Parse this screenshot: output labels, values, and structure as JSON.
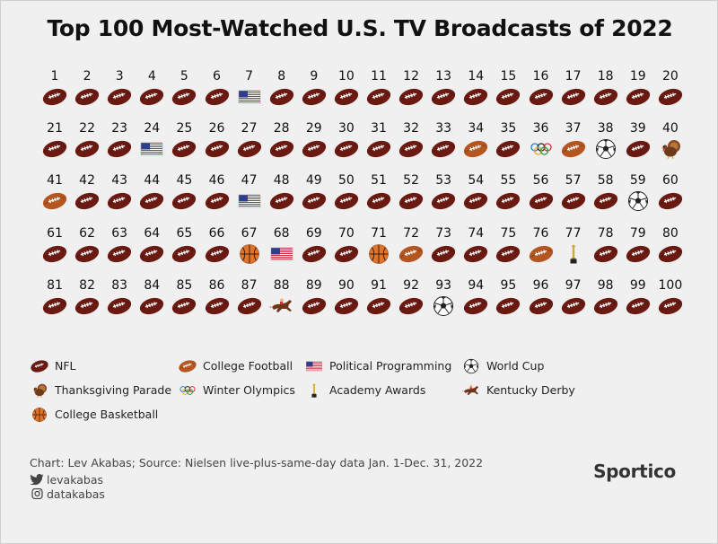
{
  "chart_data": {
    "type": "table",
    "title": "Top 100 Most-Watched U.S. TV Broadcasts of 2022",
    "categories": [
      {
        "key": "nfl",
        "label": "NFL",
        "icon": "nfl-football-icon"
      },
      {
        "key": "college_football",
        "label": "College Football",
        "icon": "college-football-icon"
      },
      {
        "key": "political",
        "label": "Political Programming",
        "icon": "us-flag-icon"
      },
      {
        "key": "world_cup",
        "label": "World Cup",
        "icon": "soccer-ball-icon"
      },
      {
        "key": "thanksgiving",
        "label": "Thanksgiving Parade",
        "icon": "turkey-icon"
      },
      {
        "key": "olympics",
        "label": "Winter Olympics",
        "icon": "olympic-rings-icon"
      },
      {
        "key": "oscars",
        "label": "Academy Awards",
        "icon": "oscar-statue-icon"
      },
      {
        "key": "derby",
        "label": "Kentucky Derby",
        "icon": "horse-racing-icon"
      },
      {
        "key": "college_basketball",
        "label": "College Basketball",
        "icon": "basketball-icon"
      }
    ],
    "ranks": [
      "1",
      "2",
      "3",
      "4",
      "5",
      "6",
      "7",
      "8",
      "9",
      "10",
      "11",
      "12",
      "13",
      "14",
      "15",
      "16",
      "17",
      "18",
      "19",
      "20",
      "21",
      "22",
      "23",
      "24",
      "25",
      "26",
      "27",
      "28",
      "29",
      "30",
      "31",
      "32",
      "33",
      "34",
      "35",
      "36",
      "37",
      "38",
      "39",
      "40",
      "41",
      "42",
      "43",
      "44",
      "45",
      "46",
      "47",
      "48",
      "49",
      "50",
      "51",
      "52",
      "53",
      "54",
      "55",
      "56",
      "57",
      "58",
      "59",
      "60",
      "61",
      "62",
      "63",
      "64",
      "65",
      "66",
      "67",
      "68",
      "69",
      "70",
      "71",
      "72",
      "73",
      "74",
      "75",
      "76",
      "77",
      "78",
      "79",
      "80",
      "81",
      "82",
      "83",
      "84",
      "85",
      "86",
      "87",
      "88",
      "89",
      "90",
      "91",
      "92",
      "93",
      "94",
      "95",
      "96",
      "97",
      "98",
      "99",
      "100"
    ],
    "broadcasts": [
      "nfl",
      "nfl",
      "nfl",
      "nfl",
      "nfl",
      "nfl",
      "political",
      "nfl",
      "nfl",
      "nfl",
      "nfl",
      "nfl",
      "nfl",
      "nfl",
      "nfl",
      "nfl",
      "nfl",
      "nfl",
      "nfl",
      "nfl",
      "nfl",
      "nfl",
      "nfl",
      "political",
      "nfl",
      "nfl",
      "nfl",
      "nfl",
      "nfl",
      "nfl",
      "nfl",
      "nfl",
      "nfl",
      "college_football",
      "nfl",
      "olympics",
      "college_football",
      "world_cup",
      "nfl",
      "thanksgiving",
      "college_football",
      "nfl",
      "nfl",
      "nfl",
      "nfl",
      "nfl",
      "political",
      "nfl",
      "nfl",
      "nfl",
      "nfl",
      "nfl",
      "nfl",
      "nfl",
      "nfl",
      "nfl",
      "nfl",
      "nfl",
      "world_cup",
      "nfl",
      "nfl",
      "nfl",
      "nfl",
      "nfl",
      "nfl",
      "nfl",
      "college_basketball",
      "political",
      "nfl",
      "nfl",
      "college_basketball",
      "college_football",
      "nfl",
      "nfl",
      "nfl",
      "college_football",
      "oscars",
      "nfl",
      "nfl",
      "nfl",
      "nfl",
      "nfl",
      "nfl",
      "nfl",
      "nfl",
      "nfl",
      "nfl",
      "derby",
      "nfl",
      "nfl",
      "nfl",
      "nfl",
      "world_cup",
      "nfl",
      "nfl",
      "nfl",
      "nfl",
      "nfl",
      "nfl",
      "nfl"
    ]
  },
  "footer": {
    "source": "Chart: Lev Akabas; Source: Nielsen live-plus-same-day data Jan. 1-Dec. 31, 2022",
    "twitter": "levakabas",
    "instagram": "datakabas",
    "twitter_icon": "twitter-bird-icon",
    "instagram_icon": "instagram-icon",
    "brand": "Sportico"
  },
  "colors": {
    "nfl": "#6b1a12",
    "college_football": "#b5551f",
    "basketball": "#e0742a",
    "background": "#f0f0f0"
  }
}
